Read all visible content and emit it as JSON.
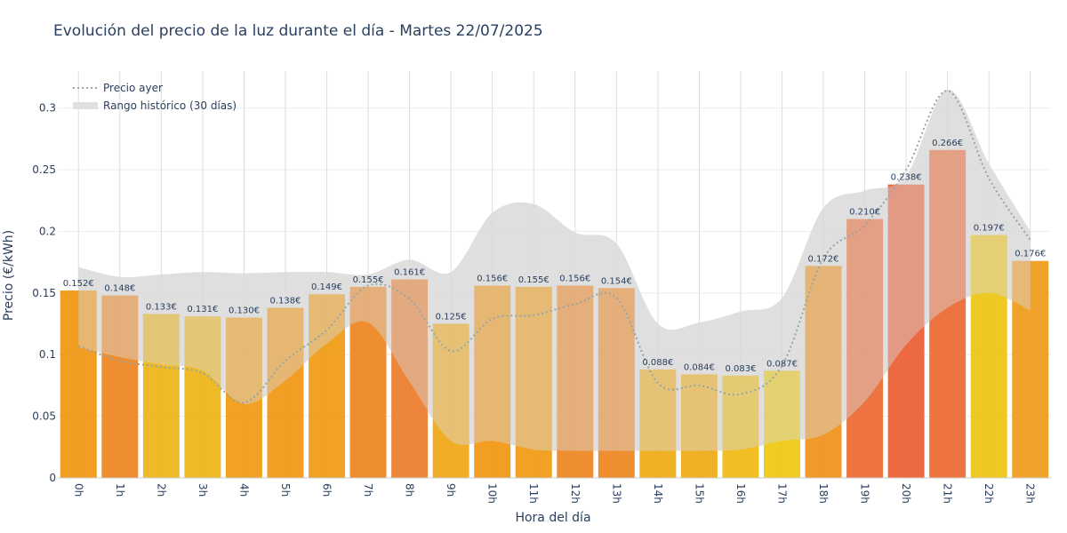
{
  "chart_data": {
    "type": "bar",
    "title": "Evolución del precio de la luz durante el día - Martes 22/07/2025",
    "xlabel": "Hora del día",
    "ylabel": "Precio (€/kWh)",
    "ylim": [
      0,
      0.33
    ],
    "yticks": [
      0,
      0.05,
      0.1,
      0.15,
      0.2,
      0.25,
      0.3
    ],
    "ytick_labels": [
      "0",
      "0.05",
      "0.1",
      "0.15",
      "0.2",
      "0.25",
      "0.3"
    ],
    "grid": true,
    "categories": [
      "0h",
      "1h",
      "2h",
      "3h",
      "4h",
      "5h",
      "6h",
      "7h",
      "8h",
      "9h",
      "10h",
      "11h",
      "12h",
      "13h",
      "14h",
      "15h",
      "16h",
      "17h",
      "18h",
      "19h",
      "20h",
      "21h",
      "22h",
      "23h"
    ],
    "values": [
      0.152,
      0.148,
      0.133,
      0.131,
      0.13,
      0.138,
      0.149,
      0.155,
      0.161,
      0.125,
      0.156,
      0.155,
      0.156,
      0.154,
      0.088,
      0.084,
      0.083,
      0.087,
      0.172,
      0.21,
      0.238,
      0.266,
      0.197,
      0.176
    ],
    "data_labels": [
      "0.152€",
      "0.148€",
      "0.133€",
      "0.131€",
      "0.130€",
      "0.138€",
      "0.149€",
      "0.155€",
      "0.161€",
      "0.125€",
      "0.156€",
      "0.155€",
      "0.156€",
      "0.154€",
      "0.088€",
      "0.084€",
      "0.083€",
      "0.087€",
      "0.172€",
      "0.210€",
      "0.238€",
      "0.266€",
      "0.197€",
      "0.176€"
    ],
    "bar_colors": [
      "#f0960f",
      "#ee8420",
      "#eeb416",
      "#eeb416",
      "#f09a10",
      "#f0960f",
      "#f09a10",
      "#ee8420",
      "#ec7c2a",
      "#f0a612",
      "#f0960f",
      "#f09a10",
      "#ee8420",
      "#ee8420",
      "#f0aa14",
      "#f0aa14",
      "#f0ba10",
      "#eec80c",
      "#f09018",
      "#ec6830",
      "#ec5c30",
      "#ec6830",
      "#eec410",
      "#f09a18"
    ],
    "series": [
      {
        "name": "Precio ayer",
        "style": "dotted-line",
        "color": "#95a5a6",
        "values": [
          0.107,
          0.095,
          0.09,
          0.085,
          0.061,
          0.095,
          0.12,
          0.156,
          0.145,
          0.103,
          0.129,
          0.132,
          0.141,
          0.146,
          0.077,
          0.075,
          0.068,
          0.091,
          0.178,
          0.205,
          0.25,
          0.314,
          0.243,
          0.193
        ]
      },
      {
        "name": "Rango histórico (30 días)",
        "style": "band",
        "color": "#d9d9d9",
        "upper": [
          0.171,
          0.163,
          0.165,
          0.167,
          0.166,
          0.167,
          0.167,
          0.165,
          0.177,
          0.167,
          0.215,
          0.222,
          0.199,
          0.19,
          0.125,
          0.126,
          0.135,
          0.146,
          0.219,
          0.233,
          0.245,
          0.315,
          0.255,
          0.2
        ],
        "lower": [
          0.106,
          0.098,
          0.092,
          0.087,
          0.06,
          0.079,
          0.109,
          0.126,
          0.078,
          0.03,
          0.03,
          0.023,
          0.022,
          0.022,
          0.022,
          0.022,
          0.023,
          0.03,
          0.035,
          0.062,
          0.108,
          0.138,
          0.15,
          0.136
        ]
      }
    ],
    "legend_position": "top-left"
  }
}
